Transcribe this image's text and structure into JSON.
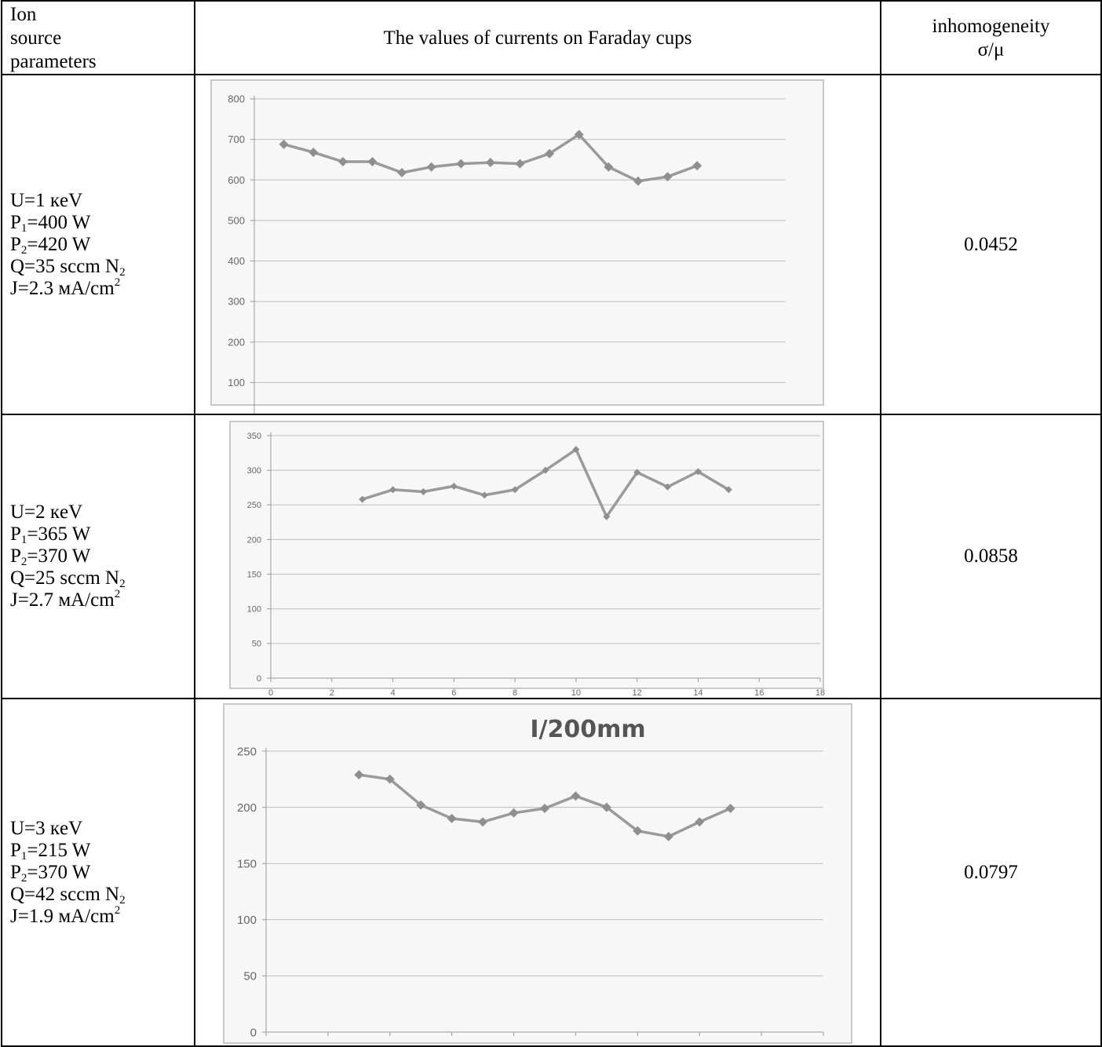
{
  "header": {
    "col1_line1_a": "Ion",
    "col1_line1_b": "source",
    "col1_line2": "parameters",
    "col2": "The values of currents on Faraday cups",
    "col3_line1": "inhomogeneity",
    "col3_line2": "σ/μ"
  },
  "rows": [
    {
      "U": "U=1 кeV",
      "P1_prefix": "P",
      "P1_sub": "1",
      "P1_value": "=400 W",
      "P2_prefix": "P",
      "P2_sub": "2",
      "P2_value": "=420 W",
      "Q_text": "Q=35 sccm N",
      "Q_sub": "2",
      "J_text": "J=2.3 мA/cm",
      "J_sup": "2",
      "inhomogeneity": "0.0452"
    },
    {
      "U": "U=2 кeV",
      "P1_prefix": "P",
      "P1_sub": "1",
      "P1_value": "=365 W",
      "P2_prefix": "P",
      "P2_sub": "2",
      "P2_value": "=370 W",
      "Q_text": "Q=25 sccm N",
      "Q_sub": "2",
      "J_text": "J=2.7 мA/cm",
      "J_sup": "2",
      "inhomogeneity": "0.0858"
    },
    {
      "U": "U=3 кeV",
      "P1_prefix": "P",
      "P1_sub": "1",
      "P1_value": "=215 W",
      "P2_prefix": "P",
      "P2_sub": "2",
      "P2_value": "=370 W",
      "Q_text": "Q=42 sccm N",
      "Q_sub": "2",
      "J_text": "J=1.9 мA/cm",
      "J_sup": "2",
      "inhomogeneity": "0.0797"
    }
  ],
  "colors": {
    "line": "#9a9a9a",
    "marker": "#8f8f8f",
    "grid": "#bdbdbd",
    "chart_bg": "#f7f7f7",
    "border": "#c8c8c8"
  },
  "chart_data": [
    {
      "type": "line",
      "title": "",
      "x": [
        1,
        2,
        3,
        4,
        5,
        6,
        7,
        8,
        9,
        10,
        11,
        12,
        13,
        14,
        15
      ],
      "series": [
        {
          "values": [
            688,
            668,
            645,
            645,
            618,
            632,
            640,
            643,
            640,
            665,
            712,
            632,
            597,
            608,
            635
          ]
        }
      ],
      "xlim": [
        0,
        18
      ],
      "ylim": [
        0,
        800
      ],
      "xticks": [
        "0",
        "2",
        "4",
        "6",
        "8",
        "10",
        "12",
        "14",
        "16",
        "18"
      ],
      "yticks": [
        "0",
        "100",
        "200",
        "300",
        "400",
        "500",
        "600",
        "700",
        "800"
      ],
      "grid": true
    },
    {
      "type": "line",
      "title": "",
      "x": [
        3,
        4,
        5,
        6,
        7,
        8,
        9,
        10,
        11,
        12,
        13,
        14,
        15
      ],
      "series": [
        {
          "values": [
            258,
            272,
            269,
            277,
            264,
            272,
            300,
            330,
            233,
            297,
            276,
            298,
            272
          ]
        }
      ],
      "xlim": [
        0,
        18
      ],
      "ylim": [
        0,
        350
      ],
      "xticks": [
        "0",
        "2",
        "4",
        "6",
        "8",
        "10",
        "12",
        "14",
        "16",
        "18"
      ],
      "yticks": [
        "0",
        "50",
        "100",
        "150",
        "200",
        "250",
        "300",
        "350"
      ],
      "grid": true
    },
    {
      "type": "line",
      "title": "I/200mm",
      "x": [
        3,
        4,
        5,
        6,
        7,
        8,
        9,
        10,
        11,
        12,
        13,
        14,
        15
      ],
      "series": [
        {
          "values": [
            229,
            225,
            202,
            190,
            187,
            195,
            199,
            210,
            200,
            179,
            174,
            187,
            199
          ]
        }
      ],
      "xlim": [
        0,
        18
      ],
      "ylim": [
        0,
        250
      ],
      "xticks": [
        "0",
        "2",
        "4",
        "6",
        "8",
        "10",
        "12",
        "14",
        "16",
        "18"
      ],
      "yticks": [
        "0",
        "50",
        "100",
        "150",
        "200",
        "250"
      ],
      "grid": true
    }
  ]
}
